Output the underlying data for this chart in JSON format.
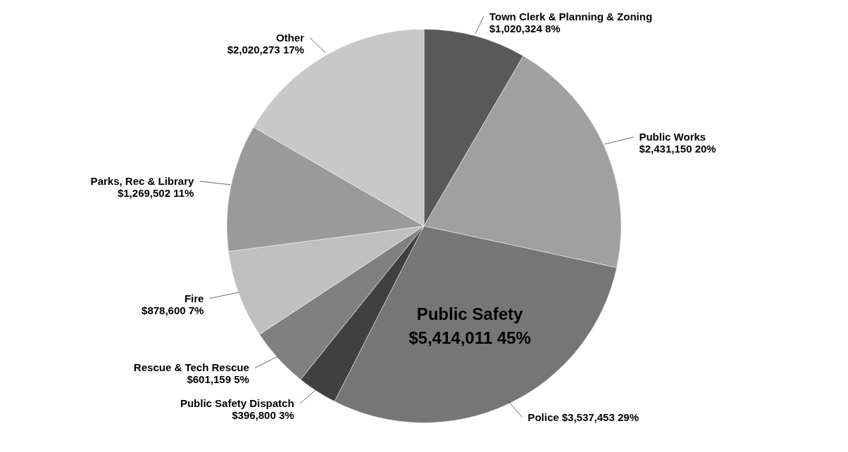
{
  "chart_data": {
    "type": "pie",
    "categories": [
      "Town Clerk & Planning & Zoning",
      "Public Works",
      "Police",
      "Public Safety Dispatch",
      "Rescue & Tech Rescue",
      "Fire",
      "Parks, Rec & Library",
      "Other"
    ],
    "values": [
      1020324,
      2431150,
      3537453,
      396800,
      601159,
      878600,
      1269502,
      2020273
    ],
    "value_labels": [
      "$1,020,324  8%",
      "$2,431,150  20%",
      "$3,537,453  29%",
      "$396,800  3%",
      "$601,159  5%",
      "$878,600  7%",
      "$1,269,502  11%",
      "$2,020,273  17%"
    ],
    "colors": [
      "#595959",
      "#a0a0a0",
      "#767676",
      "#404040",
      "#808080",
      "#c0c0c0",
      "#9a9a9a",
      "#c8c8c8"
    ],
    "annotations": [
      "Public Safety\n$5,414,011  45%"
    ]
  }
}
